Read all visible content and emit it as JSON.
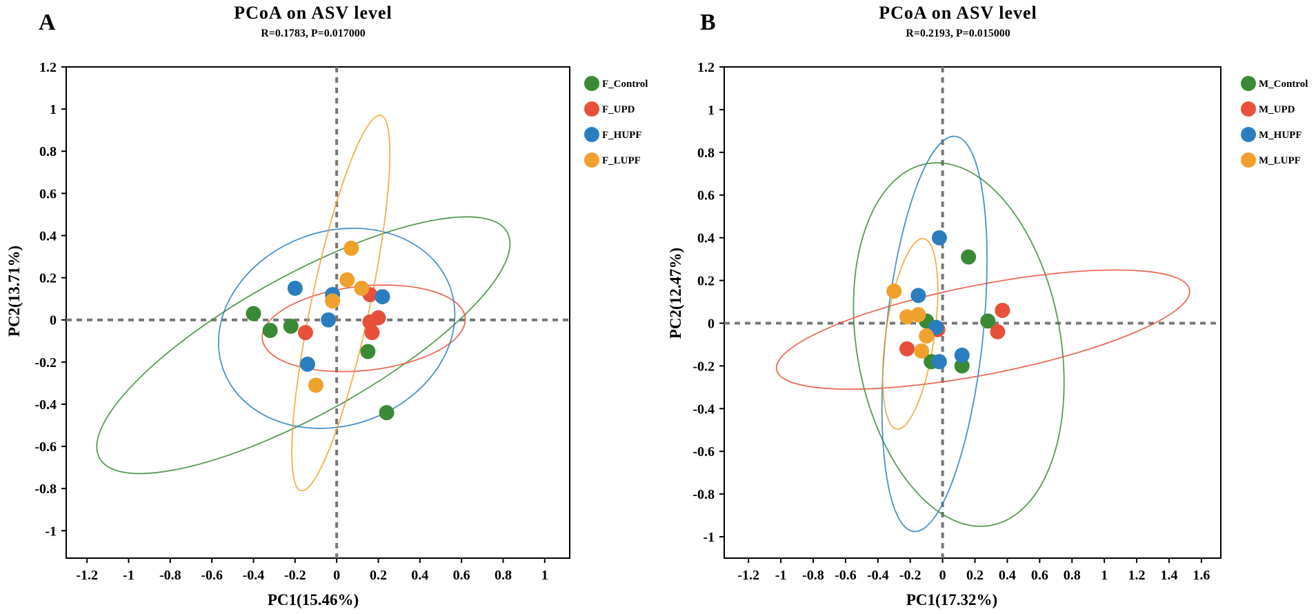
{
  "chart_data": [
    {
      "type": "scatter",
      "panel_label": "A",
      "title": "PCoA on ASV level",
      "subtitle": "R=0.1783, P=0.017000",
      "xlabel": "PC1(15.46%)",
      "ylabel": "PC2(13.71%)",
      "xlim": [
        -1.3,
        1.12
      ],
      "ylim": [
        -1.13,
        1.2
      ],
      "xticks": [
        -1.2,
        -1,
        -0.8,
        -0.6,
        -0.4,
        -0.2,
        0,
        0.2,
        0.4,
        0.6,
        0.8,
        1
      ],
      "yticks": [
        1.2,
        1,
        0.8,
        0.6,
        0.4,
        0.2,
        0,
        -0.2,
        -0.4,
        -0.6,
        -0.8,
        -1
      ],
      "legend_position": "top-right",
      "grid": false,
      "series": [
        {
          "name": "F_Control",
          "color": "#3a8a35",
          "points": [
            [
              -0.4,
              0.03
            ],
            [
              -0.32,
              -0.05
            ],
            [
              -0.22,
              -0.03
            ],
            [
              0.15,
              -0.15
            ],
            [
              0.24,
              -0.44
            ]
          ],
          "ellipse": {
            "cx": -0.16,
            "cy": -0.12,
            "rx": 1.12,
            "ry": 0.33,
            "angle_deg": 29
          }
        },
        {
          "name": "F_UPD",
          "color": "#e8503a",
          "points": [
            [
              -0.15,
              -0.06
            ],
            [
              0.16,
              0.12
            ],
            [
              0.16,
              -0.01
            ],
            [
              0.2,
              0.01
            ],
            [
              0.17,
              -0.06
            ]
          ],
          "ellipse": {
            "cx": 0.13,
            "cy": -0.04,
            "rx": 0.49,
            "ry": 0.2,
            "angle_deg": 6
          }
        },
        {
          "name": "F_HUPF",
          "color": "#2a7ec0",
          "points": [
            [
              -0.2,
              0.15
            ],
            [
              -0.02,
              0.12
            ],
            [
              0.22,
              0.11
            ],
            [
              -0.04,
              0.0
            ],
            [
              -0.14,
              -0.21
            ]
          ],
          "ellipse": {
            "cx": 0.0,
            "cy": -0.04,
            "rx": 0.58,
            "ry": 0.46,
            "angle_deg": 20
          }
        },
        {
          "name": "F_LUPF",
          "color": "#f0a12c",
          "points": [
            [
              0.07,
              0.34
            ],
            [
              0.05,
              0.19
            ],
            [
              0.12,
              0.15
            ],
            [
              -0.02,
              0.09
            ],
            [
              -0.1,
              -0.31
            ]
          ],
          "ellipse": {
            "cx": 0.02,
            "cy": 0.08,
            "rx": 0.14,
            "ry": 0.91,
            "angle_deg": -12
          }
        }
      ]
    },
    {
      "type": "scatter",
      "panel_label": "B",
      "title": "PCoA on ASV level",
      "subtitle": "R=0.2193, P=0.015000",
      "xlabel": "PC1(17.32%)",
      "ylabel": "PC2(12.47%)",
      "xlim": [
        -1.35,
        1.72
      ],
      "ylim": [
        -1.1,
        1.2
      ],
      "xticks": [
        -1.2,
        -1,
        -0.8,
        -0.6,
        -0.4,
        -0.2,
        0,
        0.2,
        0.4,
        0.6,
        0.8,
        1,
        1.2,
        1.4,
        1.6
      ],
      "yticks": [
        1.2,
        1,
        0.8,
        0.6,
        0.4,
        0.2,
        0,
        -0.2,
        -0.4,
        -0.6,
        -0.8,
        -1
      ],
      "legend_position": "top-right",
      "grid": false,
      "series": [
        {
          "name": "M_Control",
          "color": "#3a8a35",
          "points": [
            [
              0.16,
              0.31
            ],
            [
              0.28,
              0.01
            ],
            [
              -0.1,
              0.01
            ],
            [
              -0.07,
              -0.18
            ],
            [
              0.12,
              -0.2
            ]
          ],
          "ellipse": {
            "cx": 0.1,
            "cy": -0.1,
            "rx": 0.63,
            "ry": 0.86,
            "angle_deg": 10
          }
        },
        {
          "name": "M_UPD",
          "color": "#e8503a",
          "points": [
            [
              0.37,
              0.06
            ],
            [
              0.34,
              -0.04
            ],
            [
              -0.22,
              -0.12
            ],
            [
              -0.03,
              -0.03
            ]
          ],
          "ellipse": {
            "cx": 0.25,
            "cy": -0.03,
            "rx": 1.3,
            "ry": 0.21,
            "angle_deg": 11
          }
        },
        {
          "name": "M_HUPF",
          "color": "#2a7ec0",
          "points": [
            [
              -0.02,
              0.4
            ],
            [
              -0.15,
              0.13
            ],
            [
              -0.04,
              -0.02
            ],
            [
              -0.02,
              -0.18
            ],
            [
              0.12,
              -0.15
            ]
          ],
          "ellipse": {
            "cx": -0.05,
            "cy": -0.05,
            "rx": 0.3,
            "ry": 0.93,
            "angle_deg": -6
          }
        },
        {
          "name": "M_LUPF",
          "color": "#f0a12c",
          "points": [
            [
              -0.3,
              0.15
            ],
            [
              -0.22,
              0.03
            ],
            [
              -0.15,
              0.04
            ],
            [
              -0.1,
              -0.06
            ],
            [
              -0.13,
              -0.13
            ]
          ],
          "ellipse": {
            "cx": -0.2,
            "cy": -0.05,
            "rx": 0.15,
            "ry": 0.45,
            "angle_deg": -8
          }
        }
      ]
    }
  ]
}
